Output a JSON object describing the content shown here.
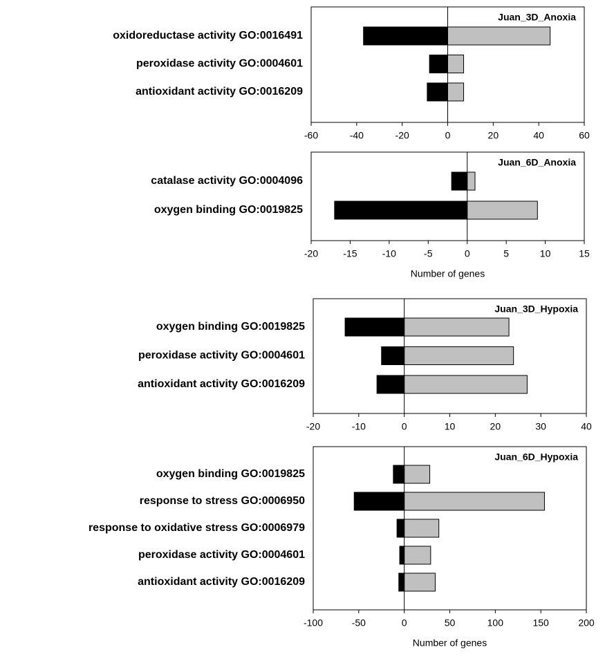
{
  "chart_data": [
    {
      "type": "bar",
      "title": "Juan_3D_Anoxia",
      "categories": [
        "oxidoreductase activity GO:0016491",
        "peroxidase activity GO:0004601",
        "antioxidant activity GO:0016209"
      ],
      "series": [
        {
          "color": "#000000",
          "values": [
            -37,
            -8,
            -9
          ]
        },
        {
          "color": "#c0c0c0",
          "values": [
            45,
            7,
            7
          ]
        }
      ],
      "xlim": [
        -60,
        60
      ],
      "xticks": [
        -60,
        -40,
        -20,
        0,
        20,
        40,
        60
      ]
    },
    {
      "type": "bar",
      "title": "Juan_6D_Anoxia",
      "categories": [
        "catalase activity GO:0004096",
        "oxygen binding GO:0019825"
      ],
      "series": [
        {
          "color": "#000000",
          "values": [
            -2,
            -17
          ]
        },
        {
          "color": "#c0c0c0",
          "values": [
            1,
            9
          ]
        }
      ],
      "xlim": [
        -20,
        15
      ],
      "xticks": [
        -20,
        -15,
        -10,
        -5,
        0,
        5,
        10,
        15
      ],
      "xlabel": "Number of genes"
    },
    {
      "type": "bar",
      "title": "Juan_3D_Hypoxia",
      "categories": [
        "oxygen binding GO:0019825",
        "peroxidase activity GO:0004601",
        "antioxidant activity GO:0016209"
      ],
      "series": [
        {
          "color": "#000000",
          "values": [
            -13,
            -5,
            -6
          ]
        },
        {
          "color": "#c0c0c0",
          "values": [
            23,
            24,
            27
          ]
        }
      ],
      "xlim": [
        -20,
        40
      ],
      "xticks": [
        -20,
        -10,
        0,
        10,
        20,
        30,
        40
      ]
    },
    {
      "type": "bar",
      "title": "Juan_6D_Hypoxia",
      "categories": [
        "oxygen binding GO:0019825",
        "response to stress GO:0006950",
        "response to oxidative stress GO:0006979",
        "peroxidase activity GO:0004601",
        "antioxidant activity GO:0016209"
      ],
      "series": [
        {
          "color": "#000000",
          "values": [
            -12,
            -55,
            -8,
            -5,
            -6
          ]
        },
        {
          "color": "#c0c0c0",
          "values": [
            28,
            154,
            38,
            29,
            34
          ]
        }
      ],
      "xlim": [
        -100,
        200
      ],
      "xticks": [
        -100,
        -50,
        0,
        50,
        100,
        150,
        200
      ],
      "xlabel": "Number of genes"
    }
  ]
}
